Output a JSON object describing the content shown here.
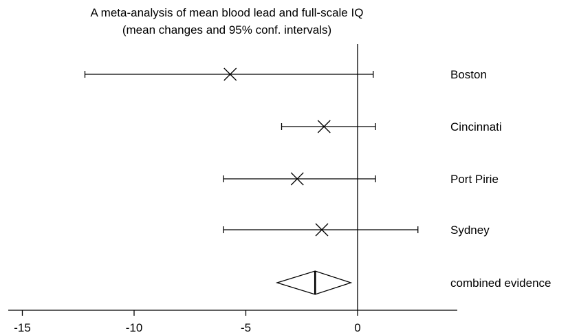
{
  "chart_data": {
    "type": "forest",
    "title": "A meta-analysis of mean blood lead and full-scale IQ",
    "subtitle": "(mean changes and 95% conf. intervals)",
    "xlabel": "",
    "ylabel": "",
    "xlim": [
      -15.5,
      4.5
    ],
    "xticks": [
      -15,
      -10,
      -5,
      0
    ],
    "xtick_labels": [
      "-15",
      "-10",
      "-5",
      "0"
    ],
    "reference_line": 0,
    "grid": false,
    "legend": "none",
    "studies": [
      {
        "name": "Boston",
        "estimate": -5.7,
        "lower": -12.2,
        "upper": 0.7
      },
      {
        "name": "Cincinnati",
        "estimate": -1.5,
        "lower": -3.4,
        "upper": 0.8
      },
      {
        "name": "Port Pirie",
        "estimate": -2.7,
        "lower": -6.0,
        "upper": 0.8
      },
      {
        "name": "Sydney",
        "estimate": -1.6,
        "lower": -6.0,
        "upper": 2.7
      }
    ],
    "combined": {
      "name": "combined evidence",
      "estimate": -1.9,
      "lower": -3.6,
      "upper": -0.3
    }
  }
}
